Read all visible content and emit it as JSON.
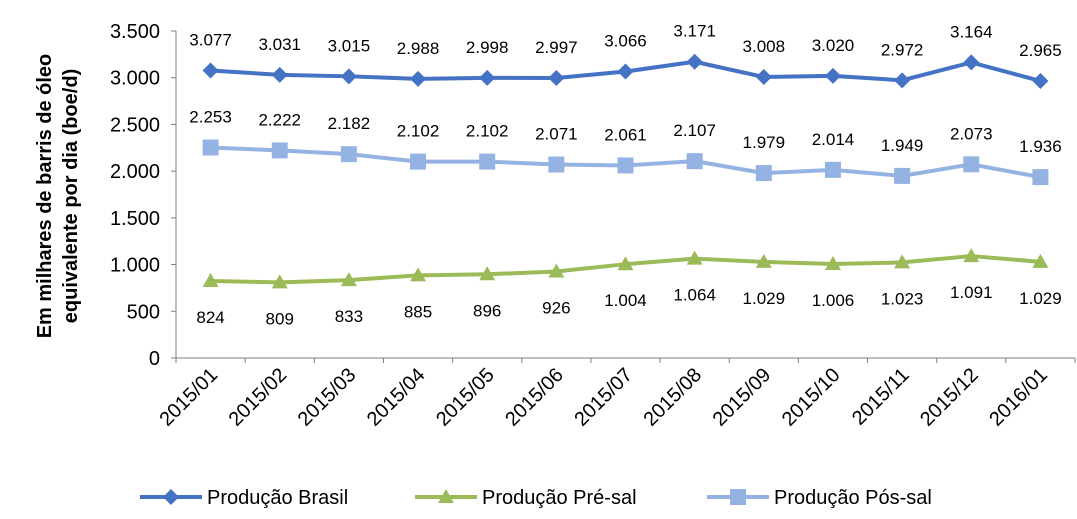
{
  "chart_data": {
    "type": "line",
    "title": "",
    "xlabel": "",
    "ylabel": "Em milhares de barris de óleo equivalente por dia (boe/d)",
    "ylabel_lines": [
      "Em milhares de barris de óleo",
      "equivalente por dia (boe/d)"
    ],
    "ylim": [
      0,
      3500
    ],
    "yticks": [
      0,
      500,
      1000,
      1500,
      2000,
      2500,
      3000,
      3500
    ],
    "ytick_labels": [
      "0",
      "500",
      "1.000",
      "1.500",
      "2.000",
      "2.500",
      "3.000",
      "3.500"
    ],
    "grid": false,
    "legend_position": "bottom",
    "categories": [
      "2015/01",
      "2015/02",
      "2015/03",
      "2015/04",
      "2015/05",
      "2015/06",
      "2015/07",
      "2015/08",
      "2015/09",
      "2015/10",
      "2015/11",
      "2015/12",
      "2016/01"
    ],
    "series": [
      {
        "name": "Produção Brasil",
        "color": "#4472C4",
        "marker": "diamond",
        "label_position": "above",
        "values": [
          3077,
          3031,
          3015,
          2988,
          2998,
          2997,
          3066,
          3171,
          3008,
          3020,
          2972,
          3164,
          2965
        ],
        "labels": [
          "3.077",
          "3.031",
          "3.015",
          "2.988",
          "2.998",
          "2.997",
          "3.066",
          "3.171",
          "3.008",
          "3.020",
          "2.972",
          "3.164",
          "2.965"
        ]
      },
      {
        "name": "Produção Pré-sal",
        "color": "#9BBB59",
        "marker": "triangle",
        "label_position": "below",
        "values": [
          824,
          809,
          833,
          885,
          896,
          926,
          1004,
          1064,
          1029,
          1006,
          1023,
          1091,
          1029
        ],
        "labels": [
          "824",
          "809",
          "833",
          "885",
          "896",
          "926",
          "1.004",
          "1.064",
          "1.029",
          "1.006",
          "1.023",
          "1.091",
          "1.029"
        ]
      },
      {
        "name": "Produção Pós-sal",
        "color": "#95B3E2",
        "marker": "square",
        "label_position": "above",
        "values": [
          2253,
          2222,
          2182,
          2102,
          2102,
          2071,
          2061,
          2107,
          1979,
          2014,
          1949,
          2073,
          1936
        ],
        "labels": [
          "2.253",
          "2.222",
          "2.182",
          "2.102",
          "2.102",
          "2.071",
          "2.061",
          "2.107",
          "1.979",
          "2.014",
          "1.949",
          "2.073",
          "1.936"
        ]
      }
    ]
  }
}
